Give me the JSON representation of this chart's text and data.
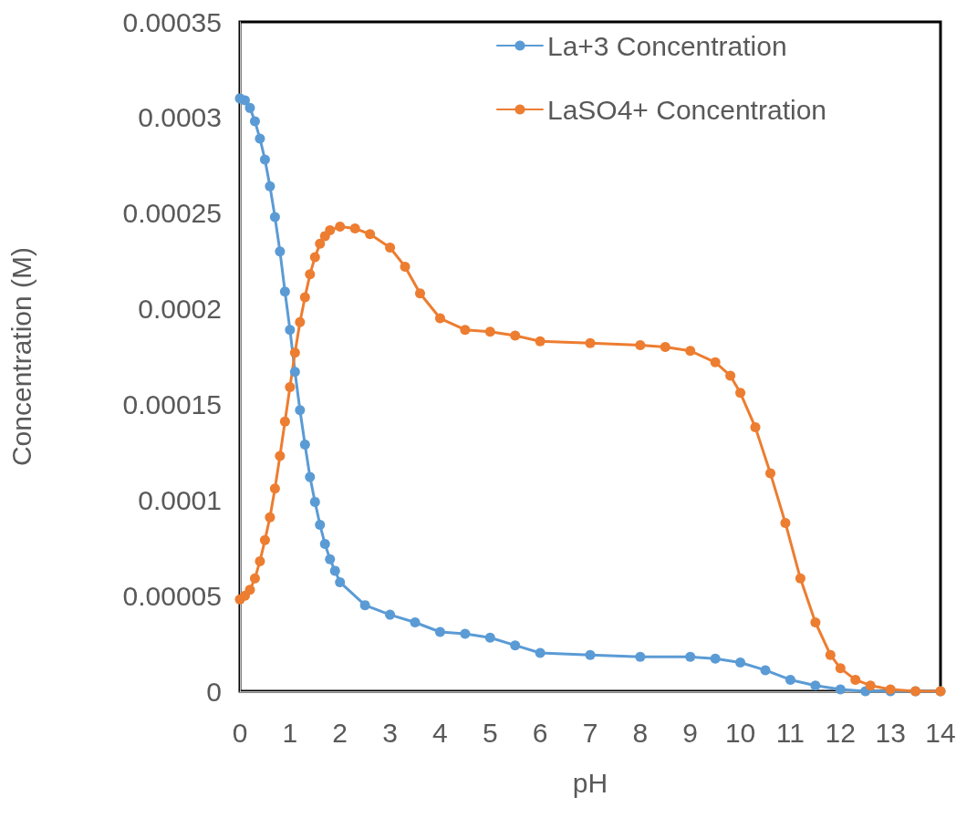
{
  "chart_data": {
    "type": "line",
    "xlabel": "pH",
    "ylabel": "Concentration (M)",
    "xlim": [
      0,
      14
    ],
    "xticks": [
      0,
      1,
      2,
      3,
      4,
      5,
      6,
      7,
      8,
      9,
      10,
      11,
      12,
      13,
      14
    ],
    "ylim": [
      0,
      0.00035
    ],
    "yticks": [
      0,
      {
        "value": 5e-05,
        "label": "0.00005"
      },
      0.0001,
      0.00015,
      0.0002,
      0.00025,
      0.0003,
      0.00035
    ],
    "grid": false,
    "legend": "top right",
    "marker": "circle",
    "line_style": "solid",
    "series": [
      {
        "name": "La+3 Concentration",
        "color": "#5b9bd5",
        "x": [
          0,
          0.1,
          0.2,
          0.3,
          0.4,
          0.5,
          0.6,
          0.7,
          0.8,
          0.9,
          1.0,
          1.1,
          1.2,
          1.3,
          1.4,
          1.5,
          1.6,
          1.7,
          1.8,
          1.9,
          2.0,
          2.5,
          3,
          3.5,
          4,
          4.5,
          5,
          5.5,
          6,
          7,
          8,
          9,
          9.5,
          10,
          10.5,
          11,
          11.5,
          12,
          12.5,
          13,
          13.5,
          14
        ],
        "values": [
          0.00031,
          0.000309,
          0.000305,
          0.000298,
          0.000289,
          0.000278,
          0.000264,
          0.000248,
          0.00023,
          0.000209,
          0.000189,
          0.000167,
          0.000147,
          0.000129,
          0.000112,
          9.9e-05,
          8.7e-05,
          7.7e-05,
          6.9e-05,
          6.3e-05,
          5.7e-05,
          4.5e-05,
          4e-05,
          3.6e-05,
          3.1e-05,
          3e-05,
          2.8e-05,
          2.4e-05,
          2e-05,
          1.9e-05,
          1.8e-05,
          1.8e-05,
          1.7e-05,
          1.5e-05,
          1.1e-05,
          6e-06,
          3e-06,
          1e-06,
          0,
          0,
          0,
          0
        ]
      },
      {
        "name": "LaSO4+ Concentration",
        "color": "#ed7d31",
        "x": [
          0,
          0.1,
          0.2,
          0.3,
          0.4,
          0.5,
          0.6,
          0.7,
          0.8,
          0.9,
          1.0,
          1.1,
          1.2,
          1.3,
          1.4,
          1.5,
          1.6,
          1.7,
          1.8,
          2.0,
          2.3,
          2.6,
          3.0,
          3.3,
          3.6,
          4.0,
          4.5,
          5,
          5.5,
          6,
          7,
          8,
          8.5,
          9,
          9.5,
          9.8,
          10,
          10.3,
          10.6,
          10.9,
          11.2,
          11.5,
          11.8,
          12,
          12.3,
          12.6,
          13,
          13.5,
          14
        ],
        "values": [
          4.8e-05,
          5e-05,
          5.3e-05,
          5.9e-05,
          6.8e-05,
          7.9e-05,
          9.1e-05,
          0.000106,
          0.000123,
          0.000141,
          0.000159,
          0.000177,
          0.000193,
          0.000206,
          0.000218,
          0.000227,
          0.000234,
          0.000238,
          0.000241,
          0.000243,
          0.000242,
          0.000239,
          0.000232,
          0.000222,
          0.000208,
          0.000195,
          0.000189,
          0.000188,
          0.000186,
          0.000183,
          0.000182,
          0.000181,
          0.00018,
          0.000178,
          0.000172,
          0.000165,
          0.000156,
          0.000138,
          0.000114,
          8.8e-05,
          5.9e-05,
          3.6e-05,
          1.9e-05,
          1.2e-05,
          6e-06,
          3e-06,
          1e-06,
          0,
          0
        ]
      }
    ]
  }
}
